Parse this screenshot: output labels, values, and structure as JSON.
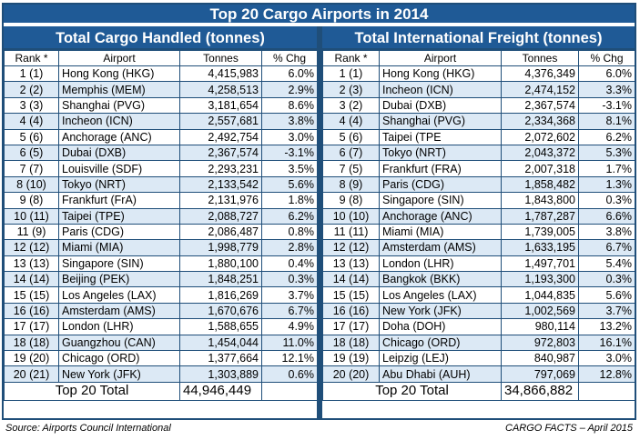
{
  "title": "Top 20 Cargo Airports in 2014",
  "left": {
    "heading": "Total Cargo Handled (tonnes)",
    "columns": [
      "Rank *",
      "Airport",
      "Tonnes",
      "% Chg"
    ],
    "rows": [
      [
        "1 (1)",
        "Hong Kong (HKG)",
        "4,415,983",
        "6.0%"
      ],
      [
        "2 (2)",
        "Memphis (MEM)",
        "4,258,513",
        "2.9%"
      ],
      [
        "3 (3)",
        "Shanghai (PVG)",
        "3,181,654",
        "8.6%"
      ],
      [
        "4 (4)",
        "Incheon (ICN)",
        "2,557,681",
        "3.8%"
      ],
      [
        "5 (6)",
        "Anchorage (ANC)",
        "2,492,754",
        "3.0%"
      ],
      [
        "6 (5)",
        "Dubai (DXB)",
        "2,367,574",
        "-3.1%"
      ],
      [
        "7 (7)",
        "Louisville (SDF)",
        "2,293,231",
        "3.5%"
      ],
      [
        "8 (10)",
        "Tokyo (NRT)",
        "2,133,542",
        "5.6%"
      ],
      [
        "9 (8)",
        "Frankfurt (FrA)",
        "2,131,976",
        "1.8%"
      ],
      [
        "10 (11)",
        "Taipei (TPE)",
        "2,088,727",
        "6.2%"
      ],
      [
        "11 (9)",
        "Paris (CDG)",
        "2,086,487",
        "0.8%"
      ],
      [
        "12 (12)",
        "Miami (MIA)",
        "1,998,779",
        "2.8%"
      ],
      [
        "13 (13)",
        "Singapore (SIN)",
        "1,880,100",
        "0.4%"
      ],
      [
        "14 (14)",
        "Beijing (PEK)",
        "1,848,251",
        "0.3%"
      ],
      [
        "15 (15)",
        "Los Angeles (LAX)",
        "1,816,269",
        "3.7%"
      ],
      [
        "16 (16)",
        "Amsterdam (AMS)",
        "1,670,676",
        "6.7%"
      ],
      [
        "17 (17)",
        "London (LHR)",
        "1,588,655",
        "4.9%"
      ],
      [
        "18 (18)",
        "Guangzhou (CAN)",
        "1,454,044",
        "11.0%"
      ],
      [
        "19 (20)",
        "Chicago (ORD)",
        "1,377,664",
        "12.1%"
      ],
      [
        "20 (21)",
        "New York (JFK)",
        "1,303,889",
        "0.6%"
      ]
    ],
    "total_label": "Top 20 Total",
    "total_value": "44,946,449"
  },
  "right": {
    "heading": "Total International Freight (tonnes)",
    "columns": [
      "Rank *",
      "Airport",
      "Tonnes",
      "% Chg"
    ],
    "rows": [
      [
        "1 (1)",
        "Hong Kong (HKG)",
        "4,376,349",
        "6.0%"
      ],
      [
        "2 (3)",
        "Incheon (ICN)",
        "2,474,152",
        "3.3%"
      ],
      [
        "3 (2)",
        "Dubai (DXB)",
        "2,367,574",
        "-3.1%"
      ],
      [
        "4 (4)",
        "Shanghai (PVG)",
        "2,334,368",
        "8.1%"
      ],
      [
        "5 (6)",
        "Taipei (TPE",
        "2,072,602",
        "6.2%"
      ],
      [
        "6 (7)",
        "Tokyo (NRT)",
        "2,043,372",
        "5.3%"
      ],
      [
        "7 (5)",
        "Frankfurt (FRA)",
        "2,007,318",
        "1.7%"
      ],
      [
        "8 (9)",
        "Paris (CDG)",
        "1,858,482",
        "1.3%"
      ],
      [
        "9 (8)",
        "Singapore (SIN)",
        "1,843,800",
        "0.3%"
      ],
      [
        "10 (10)",
        "Anchorage (ANC)",
        "1,787,287",
        "6.6%"
      ],
      [
        "11 (11)",
        "Miami (MIA)",
        "1,739,005",
        "3.8%"
      ],
      [
        "12 (12)",
        "Amsterdam (AMS)",
        "1,633,195",
        "6.7%"
      ],
      [
        "13 (13)",
        "London (LHR)",
        "1,497,701",
        "5.4%"
      ],
      [
        "14 (14)",
        "Bangkok (BKK)",
        "1,193,300",
        "0.3%"
      ],
      [
        "15 (15)",
        "Los Angeles (LAX)",
        "1,044,835",
        "5.6%"
      ],
      [
        "16 (16)",
        "New York (JFK)",
        "1,002,569",
        "3.7%"
      ],
      [
        "17 (17)",
        "Doha (DOH)",
        "980,114",
        "13.2%"
      ],
      [
        "18 (18)",
        "Chicago (ORD)",
        "972,803",
        "16.1%"
      ],
      [
        "19 (19)",
        "Leipzig (LEJ)",
        "840,987",
        "3.0%"
      ],
      [
        "20 (20)",
        "Abu Dhabi (AUH)",
        "797,069",
        "12.8%"
      ]
    ],
    "total_label": "Top 20 Total",
    "total_value": "34,866,882"
  },
  "footer": {
    "source": "Source: Airports Council International",
    "credit": "CARGO FACTS – April 2015"
  },
  "colors": {
    "header_blue": "#1f5a96",
    "border_blue": "#1f4e79",
    "stripe": "#dce9f5"
  }
}
